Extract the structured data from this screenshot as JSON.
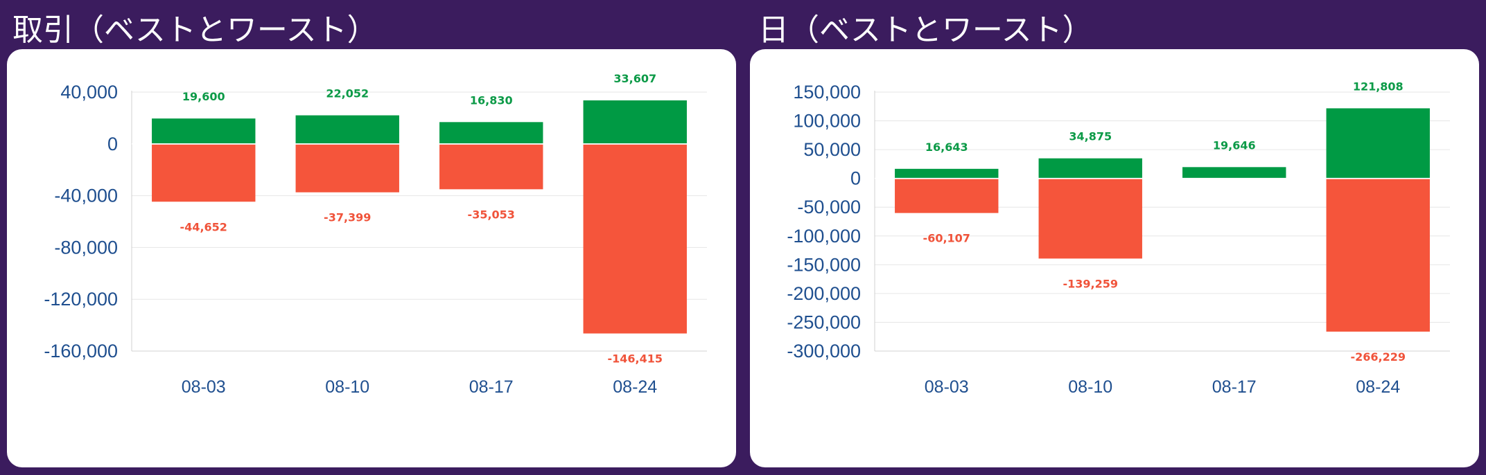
{
  "colors": {
    "background": "#3b1c5e",
    "card": "#ffffff",
    "positive": "#009a44",
    "negative": "#f5553b",
    "axis_text": "#1f4f8f",
    "grid": "#e6e6e6"
  },
  "chart_data": [
    {
      "type": "bar",
      "title": "取引（ベストとワースト）",
      "categories": [
        "08-03",
        "08-10",
        "08-17",
        "08-24"
      ],
      "yticks": [
        40000,
        0,
        -40000,
        -80000,
        -120000,
        -160000
      ],
      "ytick_labels": [
        "40,000",
        "0",
        "-40,000",
        "-80,000",
        "-120,000",
        "-160,000"
      ],
      "ylim": [
        -160000,
        40000
      ],
      "grid": true,
      "stacked": true,
      "series": [
        {
          "values": [
            19600,
            22052,
            16830,
            33607
          ],
          "labels": [
            "19,600",
            "22,052",
            "16,830",
            "33,607"
          ],
          "color": "#009a44"
        },
        {
          "values": [
            -44652,
            -37399,
            -35053,
            -146415
          ],
          "labels": [
            "-44,652",
            "-37,399",
            "-35,053",
            "-146,415"
          ],
          "color": "#f5553b"
        }
      ]
    },
    {
      "type": "bar",
      "title": "日（ベストとワースト）",
      "categories": [
        "08-03",
        "08-10",
        "08-17",
        "08-24"
      ],
      "yticks": [
        150000,
        100000,
        50000,
        0,
        -50000,
        -100000,
        -150000,
        -200000,
        -250000,
        -300000
      ],
      "ytick_labels": [
        "150,000",
        "100,000",
        "50,000",
        "0",
        "-50,000",
        "-100,000",
        "-150,000",
        "-200,000",
        "-250,000",
        "-300,000"
      ],
      "ylim": [
        -300000,
        150000
      ],
      "grid": true,
      "stacked": true,
      "series": [
        {
          "values": [
            16643,
            34875,
            19646,
            121808
          ],
          "labels": [
            "16,643",
            "34,875",
            "19,646",
            "121,808"
          ],
          "color": "#009a44"
        },
        {
          "values": [
            -60107,
            -139259,
            0,
            -266229
          ],
          "labels": [
            "-60,107",
            "-139,259",
            "",
            "-266,229"
          ],
          "color": "#f5553b"
        }
      ]
    }
  ]
}
